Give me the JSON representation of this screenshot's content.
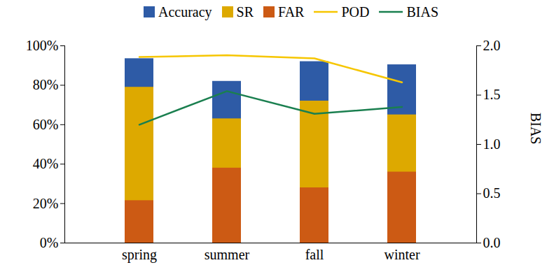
{
  "chart_data": {
    "type": "bar",
    "categories": [
      "spring",
      "summer",
      "fall",
      "winter"
    ],
    "stacked": false,
    "legend": "top",
    "series": [
      {
        "name": "Accuracy",
        "type": "bar",
        "color": "#2e5ba6",
        "values": [
          93.5,
          82,
          92,
          90.4
        ]
      },
      {
        "name": "SR",
        "type": "bar",
        "color": "#dda900",
        "values": [
          79,
          63,
          72,
          65
        ]
      },
      {
        "name": "FAR",
        "type": "bar",
        "color": "#cc5a14",
        "values": [
          21.5,
          38,
          28,
          36
        ]
      },
      {
        "name": "POD",
        "type": "line",
        "color": "#f6c600",
        "values": [
          94.3,
          95.2,
          93.6,
          81.5
        ]
      },
      {
        "name": "BIAS",
        "type": "line",
        "axis": "y2",
        "color": "#1a7f4f",
        "values": [
          1.2,
          1.54,
          1.31,
          1.38
        ]
      }
    ],
    "ylim": [
      0,
      100
    ],
    "yticks": [
      {
        "value": 0,
        "label": "0%"
      },
      {
        "value": 20,
        "label": "20%"
      },
      {
        "value": 40,
        "label": "40%"
      },
      {
        "value": 60,
        "label": "60%"
      },
      {
        "value": 80,
        "label": "80%"
      },
      {
        "value": 100,
        "label": "100%"
      }
    ],
    "y2lim": [
      0,
      2
    ],
    "y2ticks": [
      {
        "value": 0,
        "label": "0.0"
      },
      {
        "value": 0.5,
        "label": "0.5"
      },
      {
        "value": 1,
        "label": "1.0"
      },
      {
        "value": 1.5,
        "label": "1.5"
      },
      {
        "value": 2,
        "label": "2.0"
      }
    ],
    "y2label": "BIAS"
  }
}
